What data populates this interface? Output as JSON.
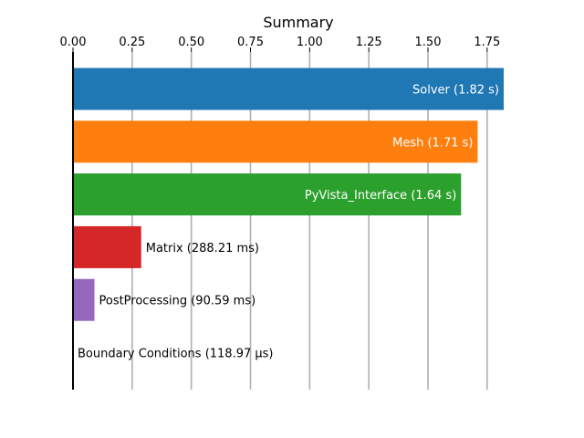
{
  "chart_data": {
    "type": "bar",
    "orientation": "horizontal",
    "title": "Summary",
    "xlabel": "",
    "ylabel": "",
    "xlim": [
      0,
      1.82
    ],
    "x_ticks": [
      0.0,
      0.25,
      0.5,
      0.75,
      1.0,
      1.25,
      1.5,
      1.75
    ],
    "x_tick_labels": [
      "0.00",
      "0.25",
      "0.50",
      "0.75",
      "1.00",
      "1.25",
      "1.50",
      "1.75"
    ],
    "x_axis_position": "top",
    "grid": {
      "vertical": true,
      "horizontal": false
    },
    "categories": [
      "Solver",
      "Mesh",
      "PyVista_Interface",
      "Matrix",
      "PostProcessing",
      "Boundary Conditions"
    ],
    "values": [
      1.82,
      1.71,
      1.64,
      0.28821,
      0.09059,
      0.00011897
    ],
    "data_labels": [
      "Solver (1.82 s)",
      "Mesh (1.71 s)",
      "PyVista_Interface (1.64 s)",
      "Matrix (288.21 ms)",
      "PostProcessing (90.59 ms)",
      "Boundary Conditions (118.97 µs)"
    ],
    "label_inside": [
      true,
      true,
      true,
      false,
      false,
      false
    ],
    "colors": [
      "#1f77b4",
      "#ff7f0e",
      "#2ca02c",
      "#d62728",
      "#9467bd",
      "#8c564b"
    ],
    "inside_label_color": "#ffffff",
    "outside_label_color": "#000000"
  }
}
